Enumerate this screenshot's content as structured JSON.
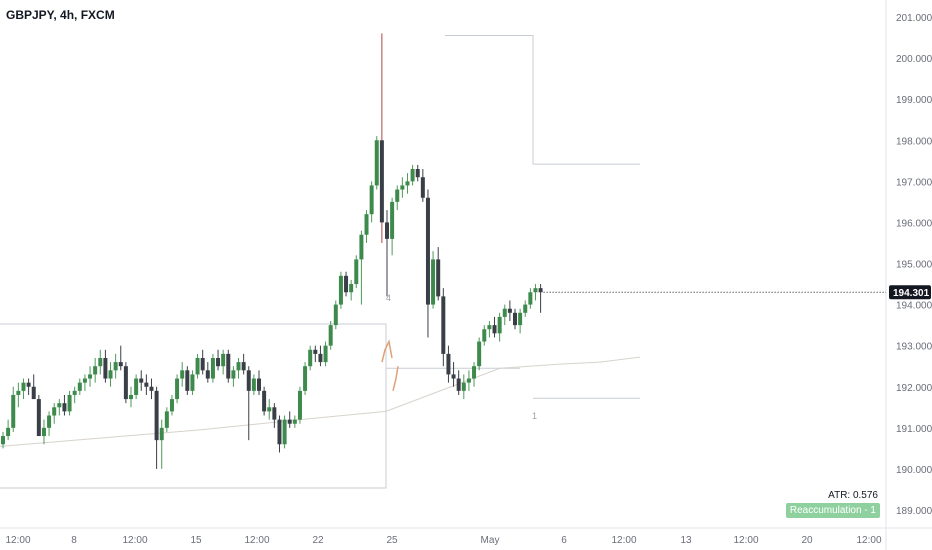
{
  "header": {
    "title": "GBPJPY, 4h, FXCM"
  },
  "indicator": {
    "atr_text": "ATR: 0.576",
    "badge": "Reaccumulation - 1"
  },
  "labels": {
    "wave_4": "4",
    "wave_1": "1"
  },
  "colors": {
    "up": "#4c9a5a",
    "down": "#3a3f47",
    "up_fill": "#3d8a4c",
    "spike": "#b04545",
    "zone": "#c8cdd4",
    "ma": "#d7d3cc",
    "proj": "#e0a078",
    "badge": "#8fd19e"
  },
  "chart_data": {
    "type": "candlestick",
    "symbol": "GBPJPY",
    "interval": "4h",
    "source": "FXCM",
    "ylim": [
      188.8,
      201.3
    ],
    "y_ticks": [
      201.0,
      200.0,
      199.0,
      198.0,
      197.0,
      196.0,
      195.0,
      194.0,
      193.0,
      192.0,
      191.0,
      190.0,
      189.0
    ],
    "y_tick_labels": [
      "201.000",
      "200.000",
      "199.000",
      "198.000",
      "197.000",
      "196.000",
      "195.000",
      "194.000",
      "193.000",
      "192.000",
      "191.000",
      "190.000",
      "189.000"
    ],
    "last_price": "194.301",
    "x_tick_labels": [
      "12:00",
      "8",
      "12:00",
      "15",
      "12:00",
      "22",
      "25",
      "May",
      "6",
      "12:00",
      "13",
      "12:00",
      "20",
      "12:00"
    ],
    "x_tick_index": [
      0,
      12,
      24,
      36,
      48,
      60,
      72,
      96,
      108,
      120,
      132,
      144,
      156,
      168
    ],
    "ohlc": [
      [
        190.6,
        190.9,
        190.5,
        190.8
      ],
      [
        190.8,
        191.2,
        190.7,
        191.0
      ],
      [
        191.0,
        192.0,
        190.9,
        191.8
      ],
      [
        191.8,
        192.1,
        191.5,
        191.9
      ],
      [
        191.9,
        192.2,
        191.7,
        192.1
      ],
      [
        192.1,
        192.2,
        191.8,
        192.0
      ],
      [
        192.0,
        192.3,
        191.8,
        191.7
      ],
      [
        191.7,
        191.8,
        190.8,
        190.8
      ],
      [
        190.8,
        191.2,
        190.6,
        191.0
      ],
      [
        191.0,
        191.4,
        190.8,
        191.3
      ],
      [
        191.3,
        191.6,
        191.1,
        191.5
      ],
      [
        191.5,
        191.7,
        191.3,
        191.6
      ],
      [
        191.6,
        191.8,
        191.3,
        191.4
      ],
      [
        191.4,
        191.9,
        191.3,
        191.8
      ],
      [
        191.8,
        192.0,
        191.6,
        191.9
      ],
      [
        191.9,
        192.2,
        191.8,
        192.1
      ],
      [
        192.1,
        192.3,
        191.9,
        192.2
      ],
      [
        192.2,
        192.5,
        192.0,
        192.3
      ],
      [
        192.3,
        192.7,
        192.1,
        192.5
      ],
      [
        192.5,
        192.9,
        192.3,
        192.7
      ],
      [
        192.7,
        192.9,
        192.1,
        192.2
      ],
      [
        192.2,
        192.6,
        192.0,
        192.4
      ],
      [
        192.4,
        192.8,
        192.2,
        192.6
      ],
      [
        192.6,
        193.0,
        192.4,
        192.5
      ],
      [
        192.5,
        192.6,
        191.6,
        191.7
      ],
      [
        191.7,
        192.0,
        191.5,
        191.8
      ],
      [
        191.8,
        192.3,
        191.7,
        192.2
      ],
      [
        192.2,
        192.4,
        191.9,
        192.1
      ],
      [
        192.1,
        192.3,
        191.8,
        192.0
      ],
      [
        192.0,
        192.2,
        191.7,
        191.9
      ],
      [
        191.9,
        192.0,
        190.0,
        190.7
      ],
      [
        190.7,
        191.2,
        190.0,
        191.0
      ],
      [
        191.0,
        191.5,
        190.9,
        191.4
      ],
      [
        191.4,
        191.8,
        191.3,
        191.7
      ],
      [
        191.7,
        192.3,
        191.6,
        192.2
      ],
      [
        192.2,
        192.6,
        192.0,
        192.4
      ],
      [
        192.4,
        192.5,
        191.8,
        191.9
      ],
      [
        191.9,
        192.4,
        191.8,
        192.3
      ],
      [
        192.3,
        192.8,
        192.2,
        192.7
      ],
      [
        192.7,
        192.9,
        192.3,
        192.4
      ],
      [
        192.4,
        192.6,
        192.1,
        192.2
      ],
      [
        192.2,
        192.8,
        192.1,
        192.7
      ],
      [
        192.7,
        192.9,
        192.4,
        192.5
      ],
      [
        192.5,
        192.9,
        192.3,
        192.8
      ],
      [
        192.8,
        192.9,
        192.1,
        192.2
      ],
      [
        192.2,
        192.5,
        192.0,
        192.4
      ],
      [
        192.4,
        192.7,
        192.2,
        192.6
      ],
      [
        192.6,
        192.8,
        192.3,
        192.4
      ],
      [
        192.4,
        192.5,
        190.7,
        191.9
      ],
      [
        191.9,
        192.3,
        191.8,
        192.2
      ],
      [
        192.2,
        192.4,
        191.8,
        191.9
      ],
      [
        191.9,
        192.0,
        191.3,
        191.4
      ],
      [
        191.4,
        191.7,
        191.2,
        191.5
      ],
      [
        191.5,
        191.6,
        191.0,
        191.2
      ],
      [
        191.2,
        191.3,
        190.4,
        190.6
      ],
      [
        190.6,
        191.3,
        190.5,
        191.2
      ],
      [
        191.2,
        191.4,
        191.0,
        191.1
      ],
      [
        191.1,
        191.3,
        191.0,
        191.2
      ],
      [
        191.2,
        192.0,
        191.1,
        191.9
      ],
      [
        191.9,
        192.6,
        191.8,
        192.5
      ],
      [
        192.5,
        193.0,
        192.4,
        192.9
      ],
      [
        192.9,
        193.0,
        192.6,
        192.8
      ],
      [
        192.8,
        193.0,
        192.5,
        192.6
      ],
      [
        192.6,
        193.1,
        192.5,
        193.0
      ],
      [
        193.0,
        193.6,
        192.9,
        193.5
      ],
      [
        193.5,
        194.1,
        193.4,
        194.0
      ],
      [
        194.0,
        194.8,
        193.9,
        194.7
      ],
      [
        194.7,
        194.8,
        194.2,
        194.3
      ],
      [
        194.3,
        194.6,
        194.1,
        194.5
      ],
      [
        194.5,
        195.2,
        194.4,
        195.1
      ],
      [
        195.1,
        195.8,
        194.0,
        195.7
      ],
      [
        195.7,
        196.3,
        195.5,
        196.2
      ],
      [
        196.2,
        197.0,
        196.0,
        196.9
      ],
      [
        196.9,
        198.1,
        196.8,
        198.0
      ],
      [
        198.0,
        200.6,
        195.5,
        196.0
      ],
      [
        196.0,
        196.3,
        194.2,
        195.6
      ],
      [
        195.6,
        196.6,
        195.2,
        196.5
      ],
      [
        196.5,
        196.9,
        196.3,
        196.8
      ],
      [
        196.8,
        197.1,
        196.6,
        196.9
      ],
      [
        196.9,
        197.2,
        196.7,
        197.0
      ],
      [
        197.0,
        197.4,
        196.9,
        197.3
      ],
      [
        197.3,
        197.4,
        197.0,
        197.1
      ],
      [
        197.1,
        197.3,
        196.5,
        196.6
      ],
      [
        196.6,
        196.8,
        193.2,
        194.0
      ],
      [
        194.0,
        195.3,
        193.9,
        195.1
      ],
      [
        195.1,
        195.4,
        194.1,
        194.2
      ],
      [
        194.2,
        194.4,
        192.5,
        192.8
      ],
      [
        192.8,
        193.0,
        192.1,
        192.3
      ],
      [
        192.3,
        192.6,
        192.0,
        192.2
      ],
      [
        192.2,
        192.4,
        191.8,
        191.9
      ],
      [
        191.9,
        192.3,
        191.7,
        192.1
      ],
      [
        192.1,
        192.4,
        191.9,
        192.2
      ],
      [
        192.2,
        192.6,
        192.0,
        192.5
      ],
      [
        192.5,
        193.2,
        192.4,
        193.1
      ],
      [
        193.1,
        193.5,
        193.0,
        193.4
      ],
      [
        193.4,
        193.6,
        193.2,
        193.5
      ],
      [
        193.5,
        193.7,
        193.2,
        193.3
      ],
      [
        193.3,
        193.8,
        193.1,
        193.7
      ],
      [
        193.7,
        194.0,
        193.5,
        193.9
      ],
      [
        193.9,
        194.1,
        193.6,
        193.8
      ],
      [
        193.8,
        193.9,
        193.4,
        193.5
      ],
      [
        193.5,
        193.9,
        193.3,
        193.8
      ],
      [
        193.8,
        194.1,
        193.7,
        194.0
      ],
      [
        194.0,
        194.4,
        193.9,
        194.3
      ],
      [
        194.3,
        194.5,
        194.1,
        194.4
      ],
      [
        194.4,
        194.5,
        193.8,
        194.3
      ]
    ]
  }
}
